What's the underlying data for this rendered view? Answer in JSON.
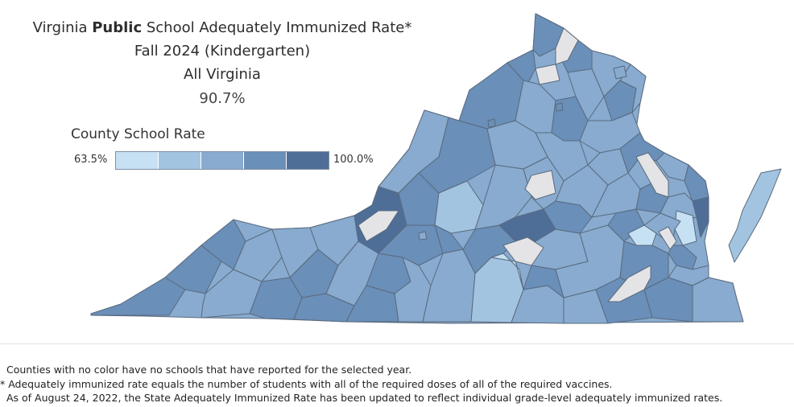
{
  "title": {
    "prefix": "Virginia ",
    "emphasis": "Public",
    "suffix": " School Adequately Immunized Rate*",
    "line2": "Fall 2024 (Kindergarten)",
    "line3": "All Virginia",
    "rate": "90.7%"
  },
  "legend": {
    "title": "County School Rate",
    "min": "63.5%",
    "max": "100.0%",
    "colors": [
      "#c6e1f3",
      "#a3c4e0",
      "#88abcf",
      "#6a8fb9",
      "#4e6e97"
    ]
  },
  "map": {
    "no_data_color": "#e4e4e6",
    "border_color": "#5a6a7e"
  },
  "footnotes": {
    "line1": "Counties with no color have no schools that have reported for the selected year.",
    "line2": "* Adequately immunized rate equals the number of students with all of the required doses of all of the required vaccines.",
    "line3": "As of August 24, 2022, the State Adequately Immunized Rate has been updated to reflect individual grade-level adequately immunized rates."
  }
}
